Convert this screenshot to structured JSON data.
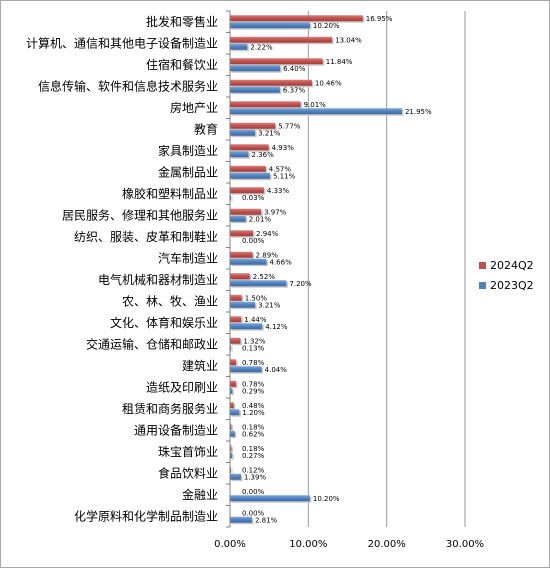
{
  "chart_data": {
    "type": "bar",
    "orientation": "horizontal",
    "categories": [
      "批发和零售业",
      "计算机、通信和其他电子设备制造业",
      "住宿和餐饮业",
      "信息传输、软件和信息技术服务业",
      "房地产业",
      "教育",
      "家具制造业",
      "金属制品业",
      "橡胶和塑料制品业",
      "居民服务、修理和其他服务业",
      "纺织、服装、皮革和制鞋业",
      "汽车制造业",
      "电气机械和器材制造业",
      "农、林、牧、渔业",
      "文化、体育和娱乐业",
      "交通运输、仓储和邮政业",
      "建筑业",
      "造纸及印刷业",
      "租赁和商务服务业",
      "通用设备制造业",
      "珠宝首饰业",
      "食品饮料业",
      "金融业",
      "化学原料和化学制品制造业"
    ],
    "series": [
      {
        "name": "2024Q2",
        "color": "#c0504d",
        "values": [
          16.95,
          13.04,
          11.84,
          10.46,
          9.01,
          5.77,
          4.93,
          4.57,
          4.33,
          3.97,
          2.94,
          2.89,
          2.52,
          1.5,
          1.44,
          1.32,
          0.78,
          0.78,
          0.48,
          0.18,
          0.18,
          0.12,
          0.0,
          0.0
        ],
        "labels": [
          "16.95%",
          "13.04%",
          "11.84%",
          "10.46%",
          "9.01%",
          "5.77%",
          "4.93%",
          "4.57%",
          "4.33%",
          "3.97%",
          "2.94%",
          "2.89%",
          "2.52%",
          "1.50%",
          "1.44%",
          "1.32%",
          "0.78%",
          "0.78%",
          "0.48%",
          "0.18%",
          "0.18%",
          "0.12%",
          "0.00%",
          "0.00%"
        ]
      },
      {
        "name": "2023Q2",
        "color": "#4f81bd",
        "values": [
          10.2,
          2.22,
          6.4,
          6.37,
          21.95,
          3.21,
          2.36,
          5.11,
          0.03,
          2.01,
          0.0,
          4.66,
          7.2,
          3.21,
          4.12,
          0.13,
          4.04,
          0.29,
          1.2,
          0.62,
          0.27,
          1.39,
          10.2,
          2.81
        ],
        "labels": [
          "10.20%",
          "2.22%",
          "6.40%",
          "6.37%",
          "21.95%",
          "3.21%",
          "2.36%",
          "5.11%",
          "0.03%",
          "2.01%",
          "0.00%",
          "4.66%",
          "7.20%",
          "3.21%",
          "4.12%",
          "0.13%",
          "4.04%",
          "0.29%",
          "1.20%",
          "0.62%",
          "0.27%",
          "1.39%",
          "10.20%",
          "2.81%"
        ]
      }
    ],
    "xlim": [
      0,
      30
    ],
    "x_ticks": [
      0,
      10,
      20,
      30
    ],
    "x_tick_labels": [
      "0.00%",
      "10.00%",
      "20.00%",
      "30.00%"
    ],
    "grid": "vertical",
    "legend_position": "right",
    "title": "",
    "xlabel": "",
    "ylabel": ""
  }
}
